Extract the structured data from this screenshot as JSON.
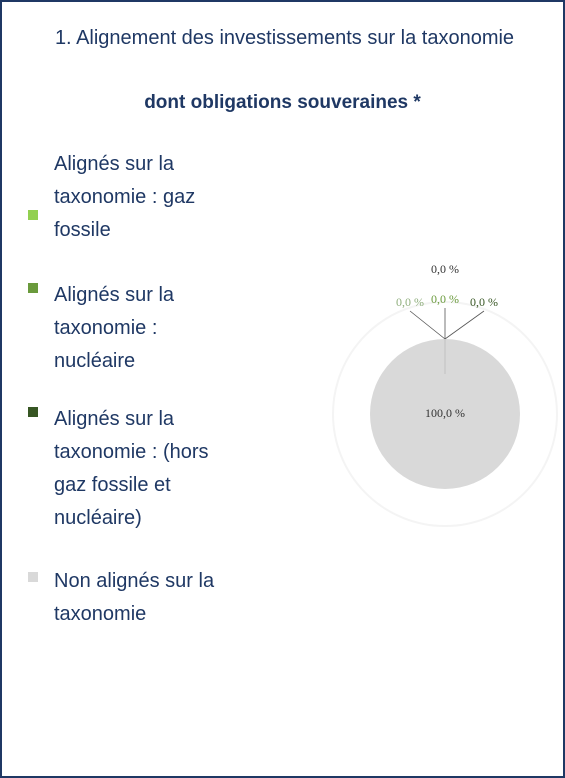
{
  "chart_data": {
    "type": "pie",
    "title": "1. Alignement des investissements sur la taxonomie",
    "subtitle": "dont obligations souveraines *",
    "categories": [
      "Alignés sur la taxonomie : gaz fossile",
      "Alignés sur la taxonomie : nucléaire",
      "Alignés sur la taxonomie : (hors gaz fossile et nucléaire)",
      "Non alignés sur la taxonomie"
    ],
    "colors": [
      "#92d050",
      "#6a9a3c",
      "#375623",
      "#d9d9d9"
    ],
    "values": [
      0,
      0,
      0,
      100
    ],
    "value_labels": [
      "0,0 %",
      "0,0 %",
      "0,0 %",
      "100,0 %"
    ],
    "annotations": [
      "0,0 %"
    ]
  }
}
